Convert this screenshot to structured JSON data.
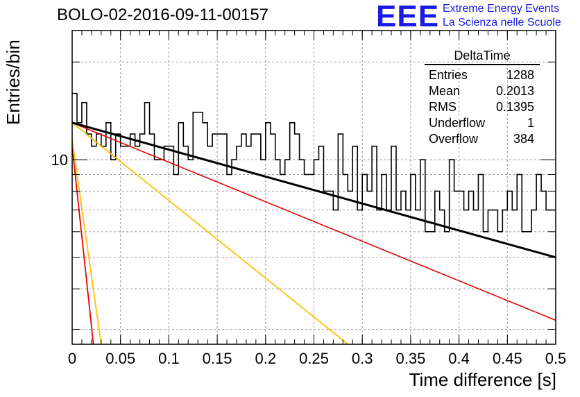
{
  "header": {
    "title": "BOLO-02-2016-09-11-00157",
    "brand_logo": "EEE",
    "brand_line1": "Extreme Energy Events",
    "brand_line2": "La Scienza nelle Scuole"
  },
  "stats": {
    "title": "DeltaTime",
    "rows": [
      {
        "label": "Entries",
        "value": "1288"
      },
      {
        "label": "Mean",
        "value": "0.2013"
      },
      {
        "label": "RMS",
        "value": "0.1395"
      },
      {
        "label": "Underflow",
        "value": "1"
      },
      {
        "label": "Overflow",
        "value": "384"
      }
    ]
  },
  "chart_data": {
    "type": "line",
    "title": "BOLO-02-2016-09-11-00157",
    "xlabel": "Time difference [s]",
    "ylabel": "Entries/bin",
    "xlim": [
      0,
      0.5
    ],
    "ylim": [
      2.7,
      25
    ],
    "yscale": "log",
    "grid": true,
    "x_ticks": [
      "0",
      "0.05",
      "0.1",
      "0.15",
      "0.2",
      "0.25",
      "0.3",
      "0.35",
      "0.4",
      "0.45",
      "0.5"
    ],
    "y_ticks": [
      "10"
    ],
    "colors": {
      "histogram": "#000000",
      "fit_total": "#000000",
      "comp_slow": "#e60000",
      "comp_fast": "#e60000",
      "comp_slow_b": "#ffc000",
      "comp_fast_b": "#ffc000"
    },
    "histogram": {
      "bin_width": 0.005,
      "values": [
        16,
        13,
        15,
        12,
        11,
        12,
        11,
        13,
        10,
        12,
        11,
        11,
        12,
        11,
        12,
        15,
        12,
        10,
        10,
        11,
        11,
        9,
        13,
        11,
        10,
        14,
        14,
        13,
        11,
        12,
        12,
        12,
        9,
        10,
        11,
        12,
        11,
        12,
        12,
        10,
        13,
        12,
        10,
        9,
        10,
        13,
        12,
        10,
        9,
        9,
        10,
        11,
        8,
        8,
        7,
        12,
        9,
        8,
        11,
        7,
        9,
        8,
        11,
        7,
        9,
        7,
        11,
        7,
        8,
        7,
        9,
        7,
        10,
        6,
        6,
        8,
        7,
        6,
        10,
        8,
        8,
        7,
        8,
        7,
        9,
        6,
        7,
        7,
        6,
        7,
        8,
        7,
        9,
        6,
        6,
        7,
        9,
        8,
        7,
        7
      ]
    },
    "series": [
      {
        "type": "line",
        "x": [
          0,
          0.5
        ],
        "y": [
          13,
          5.0
        ]
      },
      {
        "type": "line",
        "x": [
          0,
          0.5
        ],
        "y": [
          13,
          3.2
        ]
      },
      {
        "type": "line",
        "x": [
          0,
          0.022
        ],
        "y": [
          11,
          2.7
        ]
      },
      {
        "type": "line",
        "x": [
          0,
          0.285
        ],
        "y": [
          13,
          2.7
        ]
      },
      {
        "type": "line",
        "x": [
          0,
          0.03
        ],
        "y": [
          11.5,
          2.7
        ]
      }
    ]
  }
}
